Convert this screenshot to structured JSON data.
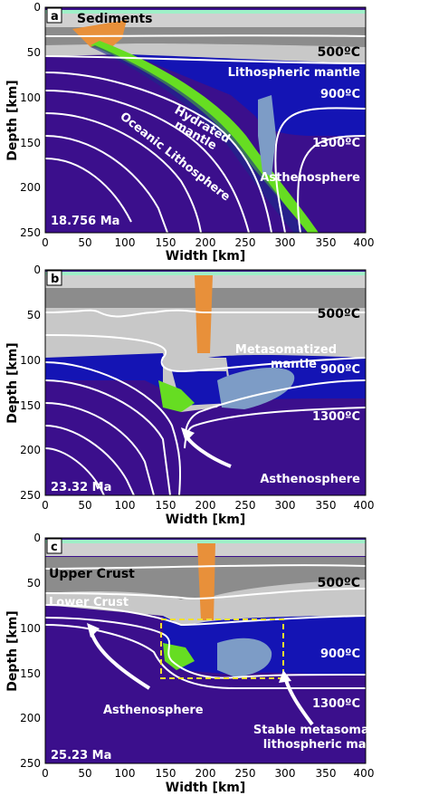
{
  "axes": {
    "ylabel": "Depth [km]",
    "xlabel": "Width [km]",
    "x_ticks": [
      "0",
      "50",
      "100",
      "150",
      "200",
      "250",
      "300",
      "350",
      "400"
    ],
    "y_ticks": [
      "0",
      "50",
      "100",
      "150",
      "200",
      "250"
    ],
    "xlim": [
      0,
      400
    ],
    "ylim": [
      250,
      0
    ]
  },
  "panels": [
    {
      "letter": "a",
      "time": "18.756 Ma",
      "labels": {
        "sediments": "Sediments",
        "t500": "500ºC",
        "litho_mantle": "Lithospheric mantle",
        "t900": "900ºC",
        "hydrated_1": "Hydrated",
        "hydrated_2": "mantle",
        "oceanic": "Oceanic Lithosphere",
        "t1300": "1300ºC",
        "astheno": "Asthenosphere"
      }
    },
    {
      "letter": "b",
      "time": "23.32 Ma",
      "labels": {
        "t500": "500ºC",
        "metaso_1": "Metasomatized",
        "metaso_2": "mantle",
        "t900": "900ºC",
        "t1300": "1300ºC",
        "astheno": "Asthenosphere"
      }
    },
    {
      "letter": "c",
      "time": "25.23 Ma",
      "labels": {
        "upper_crust": "Upper Crust",
        "t500": "500ºC",
        "lower_crust": "Lower Crust",
        "t900": "900ºC",
        "astheno": "Asthenosphere",
        "t1300": "1300ºC",
        "stable_1": "Stable metasomatized",
        "stable_2": "lithospheric mantle"
      }
    }
  ],
  "colors": {
    "deep_mantle": "#3b0f8c",
    "litho_blue": "#1414b4",
    "crust_light": "#c8c8c8",
    "crust_mid": "#8c8c8c",
    "orange": "#e8903a",
    "green": "#66dd22",
    "meta": "#7d9cc6"
  }
}
